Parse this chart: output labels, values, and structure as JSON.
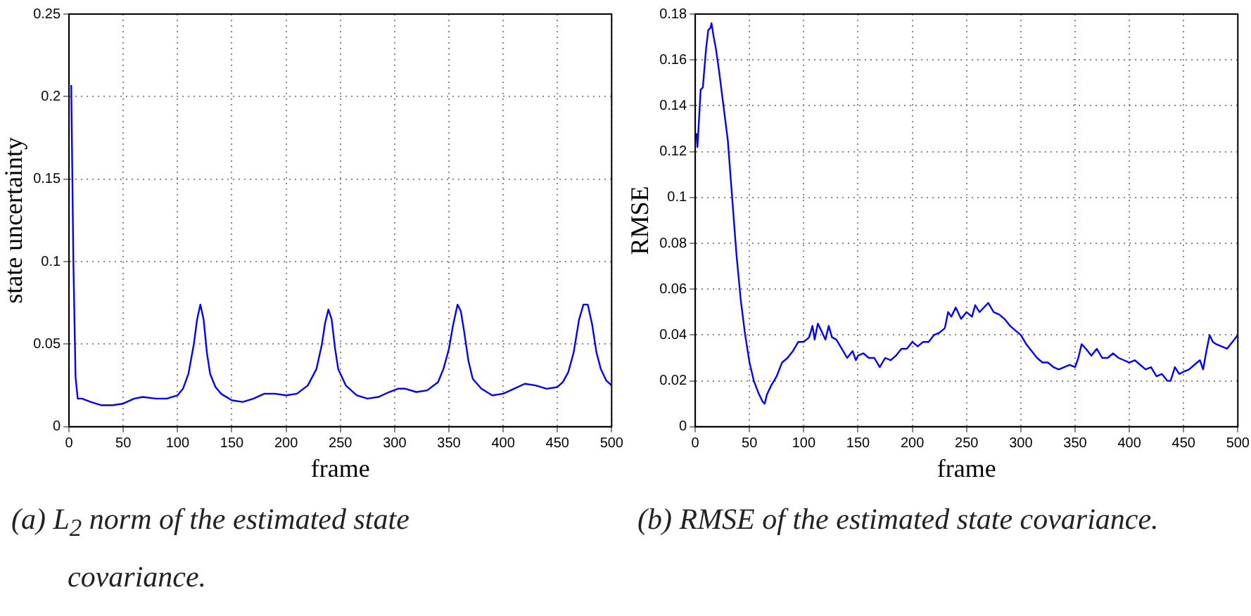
{
  "chart_data": [
    {
      "type": "line",
      "xlabel": "frame",
      "ylabel": "state uncertainty",
      "annotations": [
        "(a) L$_{2}$ norm of the estimated state covariance."
      ],
      "xlim": [
        0,
        500
      ],
      "xticks": [
        0,
        50,
        100,
        150,
        200,
        250,
        300,
        350,
        400,
        450,
        500
      ],
      "ylim": [
        0,
        0.25
      ],
      "yticks": [
        0,
        0.05,
        0.1,
        0.15,
        0.2,
        0.25
      ],
      "grid": true,
      "legend": false,
      "marker": "none",
      "line_style": "solid",
      "series": [
        {
          "color": "#0000ff",
          "x": [
            2,
            4,
            6,
            8,
            12,
            20,
            30,
            40,
            50,
            60,
            68,
            80,
            90,
            100,
            105,
            110,
            115,
            118,
            121,
            124,
            127,
            130,
            135,
            140,
            150,
            160,
            170,
            180,
            190,
            200,
            210,
            220,
            228,
            233,
            236,
            239,
            242,
            245,
            248,
            255,
            265,
            275,
            285,
            295,
            303,
            310,
            320,
            330,
            340,
            345,
            350,
            354,
            358,
            361,
            364,
            368,
            372,
            380,
            390,
            400,
            410,
            420,
            430,
            440,
            450,
            455,
            460,
            465,
            470,
            474,
            478,
            482,
            486,
            490,
            495,
            500
          ],
          "values": [
            0.207,
            0.1,
            0.03,
            0.017,
            0.017,
            0.015,
            0.013,
            0.013,
            0.014,
            0.017,
            0.018,
            0.017,
            0.017,
            0.019,
            0.023,
            0.032,
            0.05,
            0.065,
            0.074,
            0.065,
            0.045,
            0.032,
            0.024,
            0.02,
            0.016,
            0.015,
            0.017,
            0.02,
            0.02,
            0.019,
            0.02,
            0.025,
            0.035,
            0.05,
            0.063,
            0.071,
            0.065,
            0.048,
            0.035,
            0.025,
            0.019,
            0.017,
            0.018,
            0.021,
            0.023,
            0.023,
            0.021,
            0.022,
            0.027,
            0.035,
            0.047,
            0.062,
            0.074,
            0.07,
            0.058,
            0.04,
            0.029,
            0.023,
            0.019,
            0.02,
            0.023,
            0.026,
            0.025,
            0.023,
            0.024,
            0.027,
            0.033,
            0.045,
            0.065,
            0.074,
            0.074,
            0.062,
            0.045,
            0.035,
            0.028,
            0.025
          ]
        }
      ]
    },
    {
      "type": "line",
      "xlabel": "frame",
      "ylabel": "RMSE",
      "annotations": [
        "(b) RMSE of the estimated state covariance."
      ],
      "xlim": [
        0,
        500
      ],
      "xticks": [
        0,
        50,
        100,
        150,
        200,
        250,
        300,
        350,
        400,
        450,
        500
      ],
      "ylim": [
        0,
        0.18
      ],
      "yticks": [
        0,
        0.02,
        0.04,
        0.06,
        0.08,
        0.1,
        0.12,
        0.14,
        0.16,
        0.18
      ],
      "grid": true,
      "legend": false,
      "marker": "none",
      "line_style": "solid",
      "series": [
        {
          "color": "#0000ff",
          "x": [
            1,
            2,
            3,
            5,
            7,
            10,
            12,
            14,
            15,
            17,
            19,
            22,
            26,
            30,
            34,
            38,
            42,
            46,
            50,
            54,
            58,
            62,
            64,
            66,
            70,
            75,
            80,
            85,
            90,
            95,
            100,
            105,
            108,
            110,
            113,
            116,
            120,
            123,
            126,
            130,
            135,
            140,
            145,
            148,
            150,
            155,
            160,
            165,
            170,
            175,
            180,
            185,
            190,
            195,
            200,
            205,
            210,
            215,
            220,
            225,
            230,
            233,
            236,
            240,
            245,
            250,
            255,
            258,
            262,
            266,
            270,
            275,
            280,
            285,
            290,
            295,
            300,
            305,
            310,
            315,
            320,
            325,
            330,
            335,
            340,
            345,
            350,
            353,
            356,
            360,
            365,
            370,
            375,
            380,
            385,
            390,
            395,
            400,
            405,
            410,
            415,
            420,
            425,
            430,
            435,
            438,
            442,
            446,
            450,
            455,
            460,
            465,
            468,
            471,
            474,
            477,
            480,
            485,
            490,
            495,
            500
          ],
          "values": [
            0.128,
            0.122,
            0.13,
            0.147,
            0.148,
            0.165,
            0.173,
            0.174,
            0.176,
            0.17,
            0.165,
            0.155,
            0.14,
            0.125,
            0.1,
            0.075,
            0.055,
            0.04,
            0.028,
            0.02,
            0.015,
            0.011,
            0.01,
            0.014,
            0.018,
            0.022,
            0.028,
            0.03,
            0.033,
            0.037,
            0.037,
            0.039,
            0.044,
            0.038,
            0.045,
            0.042,
            0.038,
            0.044,
            0.039,
            0.038,
            0.034,
            0.03,
            0.033,
            0.029,
            0.031,
            0.032,
            0.03,
            0.03,
            0.026,
            0.03,
            0.029,
            0.031,
            0.034,
            0.034,
            0.037,
            0.035,
            0.037,
            0.037,
            0.04,
            0.041,
            0.043,
            0.05,
            0.048,
            0.052,
            0.047,
            0.05,
            0.048,
            0.053,
            0.05,
            0.052,
            0.054,
            0.05,
            0.049,
            0.047,
            0.044,
            0.042,
            0.04,
            0.036,
            0.033,
            0.03,
            0.028,
            0.028,
            0.026,
            0.025,
            0.026,
            0.027,
            0.026,
            0.03,
            0.036,
            0.034,
            0.031,
            0.034,
            0.03,
            0.03,
            0.032,
            0.03,
            0.029,
            0.028,
            0.029,
            0.027,
            0.025,
            0.026,
            0.022,
            0.023,
            0.02,
            0.02,
            0.026,
            0.023,
            0.024,
            0.025,
            0.027,
            0.029,
            0.025,
            0.033,
            0.04,
            0.037,
            0.036,
            0.035,
            0.034,
            0.037,
            0.04
          ]
        }
      ]
    }
  ]
}
